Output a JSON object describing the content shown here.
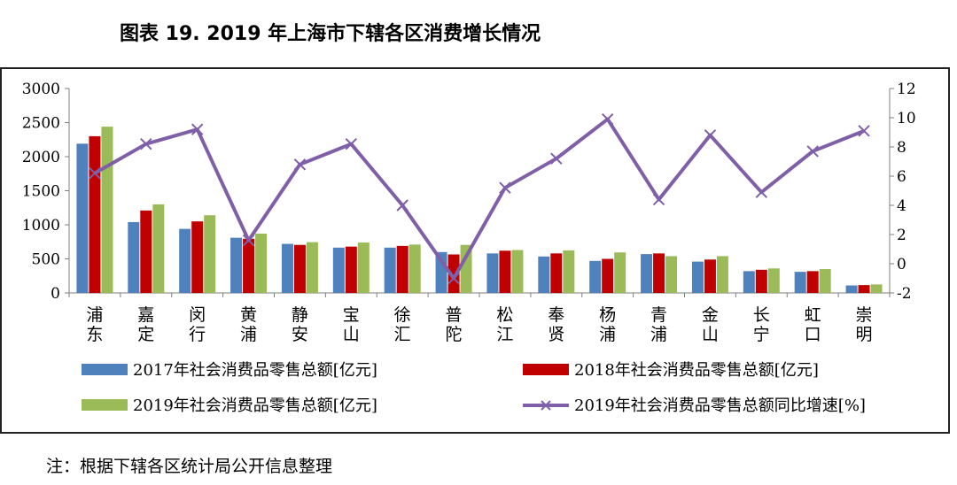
{
  "title": "图表 19. 2019 年上海市下辖各区消费增长情况",
  "note": "注：根据下辖各区统计局公开信息整理",
  "colors": {
    "s2017": "#4F81BD",
    "s2018": "#C00000",
    "s2019": "#9BBB59",
    "growth": "#7F5FA8",
    "axis": "#7f7f7f"
  },
  "chart_data": {
    "type": "bar",
    "categories": [
      "浦东",
      "嘉定",
      "闵行",
      "黄浦",
      "静安",
      "宝山",
      "徐汇",
      "普陀",
      "松江",
      "奉贤",
      "杨浦",
      "青浦",
      "金山",
      "长宁",
      "虹口",
      "崇明"
    ],
    "series": [
      {
        "name": "2017年社会消费品零售总额[亿元]",
        "type": "bar",
        "axis": "left",
        "values": [
          2190,
          1040,
          940,
          810,
          720,
          665,
          665,
          600,
          580,
          535,
          470,
          570,
          460,
          320,
          310,
          110
        ]
      },
      {
        "name": "2018年社会消费品零售总额[亿元]",
        "type": "bar",
        "axis": "left",
        "values": [
          2300,
          1210,
          1050,
          795,
          705,
          680,
          690,
          565,
          620,
          580,
          500,
          580,
          490,
          340,
          320,
          115
        ]
      },
      {
        "name": "2019年社会消费品零售总额[亿元]",
        "type": "bar",
        "axis": "left",
        "values": [
          2440,
          1300,
          1140,
          870,
          745,
          740,
          710,
          705,
          630,
          625,
          595,
          540,
          540,
          360,
          350,
          125
        ]
      },
      {
        "name": "2019年社会消费品零售总额同比增速[%]",
        "type": "line",
        "axis": "right",
        "values": [
          6.2,
          8.2,
          9.2,
          1.6,
          6.8,
          8.2,
          4.0,
          -1.0,
          5.2,
          7.2,
          9.9,
          4.4,
          8.8,
          4.9,
          7.7,
          9.1
        ]
      }
    ],
    "y_left": {
      "min": 0,
      "max": 3000,
      "ticks": [
        "0",
        "500",
        "1000",
        "1500",
        "2000",
        "2500",
        "3000"
      ]
    },
    "y_right": {
      "min": -2,
      "max": 12,
      "ticks": [
        "-2",
        "0",
        "2",
        "4",
        "6",
        "8",
        "10",
        "12"
      ]
    },
    "grid": false,
    "legend_position": "bottom"
  }
}
